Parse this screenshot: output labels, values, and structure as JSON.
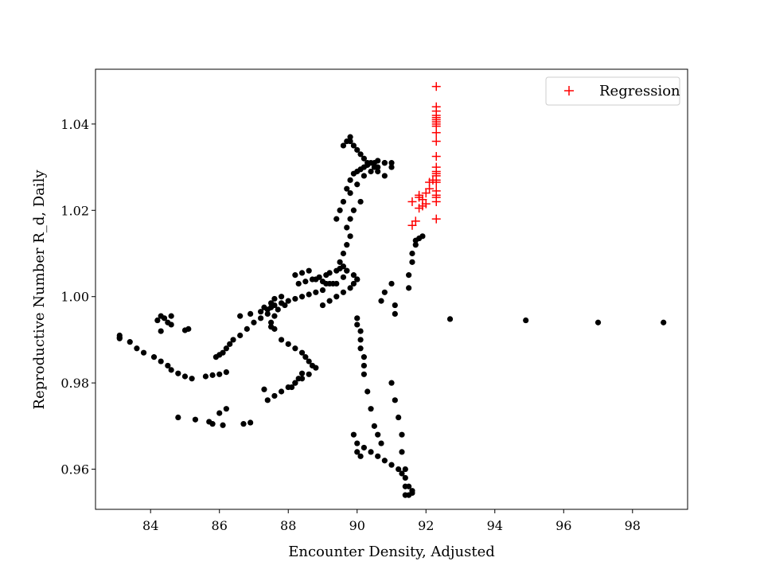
{
  "chart_data": {
    "type": "scatter",
    "title": "",
    "xlabel": "Encounter Density, Adjusted",
    "ylabel": "Reproductive Number R_d, Daily",
    "xlim": [
      82.4,
      99.6
    ],
    "ylim": [
      0.9507,
      1.0527
    ],
    "xticks": [
      84,
      86,
      88,
      90,
      92,
      94,
      96,
      98
    ],
    "yticks": [
      0.96,
      0.98,
      1.0,
      1.02,
      1.04
    ],
    "xtick_labels": [
      "84",
      "86",
      "88",
      "90",
      "92",
      "94",
      "96",
      "98"
    ],
    "ytick_labels": [
      "0.96",
      "0.98",
      "1.00",
      "1.02",
      "1.04"
    ],
    "grid": false,
    "legend": {
      "position": "top-right",
      "entries": [
        "Regression"
      ]
    },
    "series": [
      {
        "marker": "dot",
        "color": "#000000",
        "x": [
          83.1,
          83.1,
          83.1,
          83.4,
          83.6,
          83.8,
          84.1,
          84.3,
          84.5,
          84.6,
          84.8,
          85.0,
          85.2,
          84.2,
          84.3,
          84.4,
          84.5,
          84.6,
          84.3,
          84.6,
          85.0,
          85.1,
          85.6,
          85.8,
          86.0,
          86.2,
          85.9,
          86.0,
          86.1,
          86.2,
          86.3,
          86.4,
          86.6,
          86.8,
          87.0,
          87.2,
          87.4,
          87.3,
          87.5,
          87.6,
          87.8,
          87.9,
          87.7,
          87.6,
          87.5,
          87.5,
          87.6,
          87.8,
          88.0,
          88.2,
          88.4,
          88.5,
          88.6,
          88.7,
          88.8,
          88.4,
          88.3,
          88.2,
          88.1,
          87.4,
          87.6,
          87.8,
          88.0,
          88.2,
          88.4,
          88.6,
          84.8,
          85.3,
          85.7,
          85.8,
          86.1,
          86.2,
          86.0,
          86.7,
          86.9,
          87.3,
          86.6,
          86.9,
          87.2,
          87.4,
          87.5,
          87.6,
          87.8,
          88.0,
          88.2,
          88.4,
          88.6,
          88.8,
          89.0,
          88.3,
          88.5,
          88.7,
          88.9,
          89.1,
          89.2,
          89.4,
          89.5,
          89.6,
          89.7,
          89.9,
          90.0,
          88.2,
          88.4,
          88.6,
          88.8,
          89.0,
          89.1,
          89.2,
          89.3,
          89.4,
          89.6,
          89.7,
          89.5,
          89.6,
          89.7,
          89.8,
          89.7,
          89.8,
          89.9,
          90.1,
          89.4,
          89.5,
          89.6,
          89.8,
          90.0,
          90.2,
          90.4,
          90.6,
          90.8,
          91.0,
          89.7,
          89.8,
          89.9,
          90.0,
          90.1,
          90.2,
          90.3,
          90.4,
          90.5,
          90.6,
          90.8,
          91.0,
          89.6,
          89.7,
          89.8,
          89.8,
          89.9,
          90.0,
          90.1,
          90.2,
          90.3,
          90.5,
          90.6,
          90.8,
          89.0,
          89.2,
          89.4,
          89.6,
          89.8,
          89.9,
          90.0,
          90.0,
          90.1,
          90.1,
          90.1,
          90.2,
          90.2,
          90.2,
          90.3,
          90.4,
          90.5,
          90.6,
          90.7,
          89.9,
          90.0,
          90.0,
          90.1,
          90.2,
          90.4,
          90.6,
          90.8,
          91.0,
          91.2,
          91.3,
          91.4,
          91.5,
          91.6,
          91.6,
          91.5,
          91.4,
          91.4,
          91.4,
          91.3,
          91.3,
          91.2,
          91.1,
          91.0,
          91.5,
          91.5,
          91.6,
          91.6,
          91.7,
          91.7,
          91.8,
          91.9,
          90.7,
          90.8,
          91.0,
          91.1,
          91.1,
          90.0,
          92.7,
          94.9,
          97.0,
          98.9
        ],
        "y": [
          0.9905,
          0.991,
          0.9903,
          0.9895,
          0.988,
          0.987,
          0.986,
          0.985,
          0.984,
          0.983,
          0.9822,
          0.9815,
          0.981,
          0.9945,
          0.9955,
          0.995,
          0.994,
          0.9955,
          0.992,
          0.9935,
          0.9922,
          0.9925,
          0.9815,
          0.9818,
          0.982,
          0.9825,
          0.986,
          0.9865,
          0.987,
          0.988,
          0.989,
          0.99,
          0.991,
          0.9925,
          0.994,
          0.995,
          0.996,
          0.9975,
          0.9985,
          0.9995,
          1.0,
          0.998,
          0.997,
          0.9955,
          0.994,
          0.993,
          0.9925,
          0.99,
          0.989,
          0.988,
          0.987,
          0.986,
          0.985,
          0.984,
          0.9835,
          0.9822,
          0.981,
          0.98,
          0.979,
          0.976,
          0.977,
          0.978,
          0.979,
          0.98,
          0.981,
          0.982,
          0.972,
          0.9715,
          0.971,
          0.9705,
          0.9702,
          0.974,
          0.973,
          0.9705,
          0.9708,
          0.9785,
          0.9955,
          0.996,
          0.9965,
          0.997,
          0.9975,
          0.998,
          0.9985,
          0.999,
          0.9995,
          1.0,
          1.0005,
          1.001,
          1.0015,
          1.003,
          1.0035,
          1.004,
          1.0045,
          1.005,
          1.0055,
          1.006,
          1.0065,
          1.007,
          1.006,
          1.005,
          1.004,
          1.005,
          1.0055,
          1.006,
          1.004,
          1.0035,
          1.003,
          1.003,
          1.003,
          1.003,
          1.0045,
          1.006,
          1.008,
          1.01,
          1.012,
          1.014,
          1.016,
          1.018,
          1.02,
          1.022,
          1.018,
          1.02,
          1.022,
          1.024,
          1.026,
          1.028,
          1.029,
          1.03,
          1.031,
          1.031,
          1.025,
          1.027,
          1.0285,
          1.029,
          1.0295,
          1.03,
          1.0305,
          1.031,
          1.031,
          1.0315,
          1.031,
          1.03,
          1.035,
          1.036,
          1.037,
          1.036,
          1.035,
          1.034,
          1.033,
          1.032,
          1.031,
          1.03,
          1.029,
          1.028,
          0.998,
          0.999,
          1.0,
          1.001,
          1.002,
          1.003,
          1.004,
          0.9935,
          0.992,
          0.99,
          0.988,
          0.986,
          0.984,
          0.982,
          0.978,
          0.974,
          0.97,
          0.968,
          0.966,
          0.968,
          0.966,
          0.964,
          0.963,
          0.965,
          0.964,
          0.963,
          0.962,
          0.961,
          0.96,
          0.959,
          0.958,
          0.956,
          0.955,
          0.9545,
          0.954,
          0.954,
          0.956,
          0.96,
          0.964,
          0.968,
          0.972,
          0.976,
          0.98,
          1.002,
          1.005,
          1.008,
          1.01,
          1.012,
          1.013,
          1.0135,
          1.014,
          0.999,
          1.001,
          1.003,
          0.998,
          0.996,
          0.995,
          0.9948,
          0.9945,
          0.994,
          0.994
        ]
      },
      {
        "name": "Regression",
        "marker": "plus",
        "color": "#ff0000",
        "x": [
          91.6,
          91.7,
          91.8,
          91.9,
          92.0,
          91.6,
          91.8,
          91.9,
          92.0,
          91.8,
          92.1,
          92.1,
          92.2,
          92.3,
          92.3,
          92.3,
          92.3,
          92.3,
          92.3,
          92.3,
          92.3,
          92.3,
          92.3,
          92.3,
          92.3,
          92.3,
          92.3,
          92.3,
          92.3,
          92.3,
          92.3,
          92.3,
          92.3,
          92.3,
          92.3,
          92.3
        ],
        "y": [
          1.0165,
          1.0175,
          1.0205,
          1.021,
          1.0215,
          1.022,
          1.023,
          1.0225,
          1.024,
          1.0235,
          1.025,
          1.0265,
          1.027,
          1.018,
          1.022,
          1.023,
          1.0235,
          1.0245,
          1.0265,
          1.027,
          1.028,
          1.0285,
          1.029,
          1.03,
          1.0325,
          1.036,
          1.038,
          1.0395,
          1.04,
          1.0405,
          1.041,
          1.0415,
          1.042,
          1.043,
          1.044,
          1.0487
        ]
      }
    ]
  }
}
